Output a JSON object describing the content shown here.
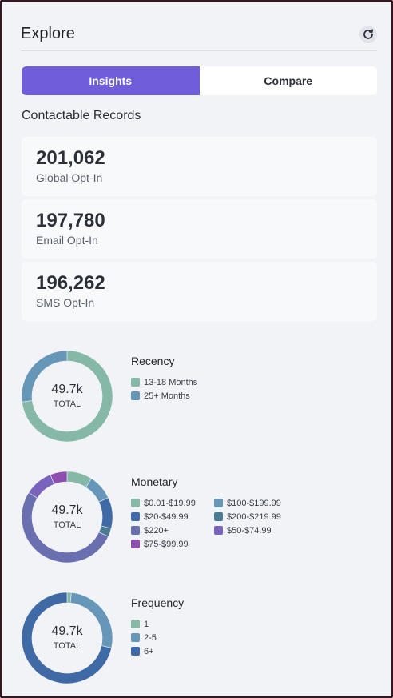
{
  "header": {
    "title": "Explore",
    "refresh_icon": "refresh-icon"
  },
  "tabs": [
    {
      "label": "Insights",
      "active": true
    },
    {
      "label": "Compare",
      "active": false
    }
  ],
  "contactable": {
    "title": "Contactable Records",
    "stats": [
      {
        "value": "201,062",
        "label": "Global Opt-In"
      },
      {
        "value": "197,780",
        "label": "Email Opt-In"
      },
      {
        "value": "196,262",
        "label": "SMS Opt-In"
      }
    ]
  },
  "colors": {
    "accent": "#6f5dd9"
  },
  "chart_data": [
    {
      "type": "pie",
      "title": "Recency",
      "center_value": "49.7k",
      "center_label": "TOTAL",
      "categories": [
        "13-18 Months",
        "25+ Months"
      ],
      "colors": [
        "#86b8a8",
        "#6797b8"
      ],
      "values": [
        73,
        27
      ]
    },
    {
      "type": "pie",
      "title": "Monetary",
      "center_value": "49.7k",
      "center_label": "TOTAL",
      "categories": [
        "$0.01-$19.99",
        "$100-$199.99",
        "$20-$49.99",
        "$200-$219.99",
        "$220+",
        "$50-$74.99",
        "$75-$99.99"
      ],
      "colors": [
        "#86b8a8",
        "#6797b8",
        "#3f6aa6",
        "#4b7a93",
        "#6a6fb0",
        "#7a63bd",
        "#8e4fb0"
      ],
      "values": [
        9,
        9,
        11,
        3,
        52,
        10,
        6
      ]
    },
    {
      "type": "pie",
      "title": "Frequency",
      "center_value": "49.7k",
      "center_label": "TOTAL",
      "categories": [
        "1",
        "2-5",
        "6+"
      ],
      "colors": [
        "#86b8a8",
        "#6797b8",
        "#3f6aa6"
      ],
      "values": [
        1.5,
        27,
        71.5
      ]
    }
  ]
}
